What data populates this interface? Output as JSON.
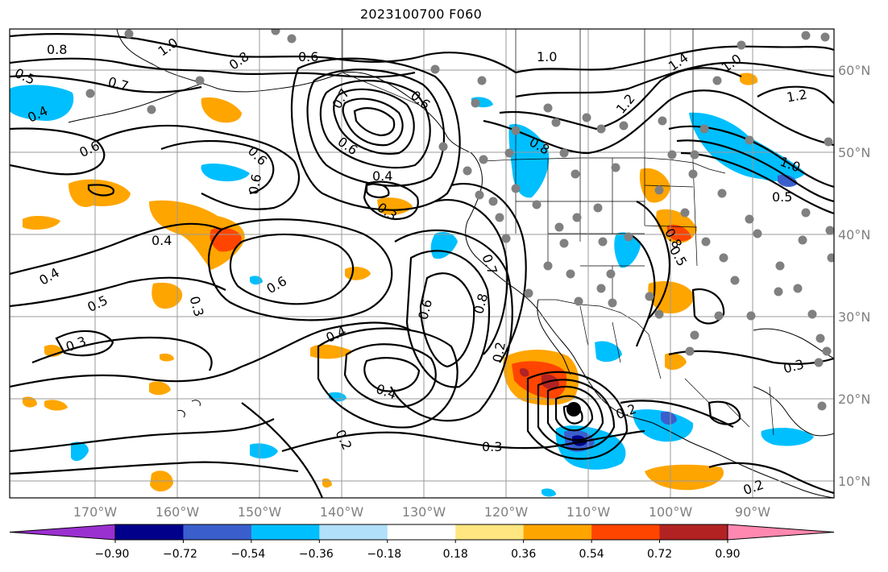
{
  "title": "2023100700 F060",
  "lat_labels": [
    {
      "lat": 60,
      "text": "60°N"
    },
    {
      "lat": 50,
      "text": "50°N"
    },
    {
      "lat": 40,
      "text": "40°N"
    },
    {
      "lat": 30,
      "text": "30°N"
    },
    {
      "lat": 20,
      "text": "20°N"
    },
    {
      "lat": 10,
      "text": "10°N"
    }
  ],
  "lon_labels": [
    {
      "lon": -170,
      "text": "170°W"
    },
    {
      "lon": -160,
      "text": "160°W"
    },
    {
      "lon": -150,
      "text": "150°W"
    },
    {
      "lon": -140,
      "text": "140°W"
    },
    {
      "lon": -130,
      "text": "130°W"
    },
    {
      "lon": -120,
      "text": "120°W"
    },
    {
      "lon": -110,
      "text": "110°W"
    },
    {
      "lon": -100,
      "text": "100°W"
    },
    {
      "lon": -90,
      "text": "90°W"
    }
  ],
  "colorbar": {
    "colors": [
      "#9b30d0",
      "#00008b",
      "#3a5fcd",
      "#00bfff",
      "#b0e0fa",
      "#ffffff",
      "#ffe680",
      "#ffa500",
      "#ff4500",
      "#b22222",
      "#ff88b0"
    ],
    "ticks": [
      "−0.90",
      "−0.72",
      "−0.54",
      "−0.36",
      "−0.18",
      "0.18",
      "0.36",
      "0.54",
      "0.72",
      "0.90"
    ]
  },
  "contour_labels": [
    "0.8",
    "1.0",
    "0.8",
    "0.6",
    "0.5",
    "0.7",
    "0.4",
    "0.6",
    "0.7",
    "0.6",
    "0.6",
    "0.6",
    "0.4",
    "0.3",
    "0.4",
    "0.6",
    "0.4",
    "0.5",
    "0.3",
    "0.3",
    "0.6",
    "0.8",
    "0.7",
    "0.8",
    "0.6",
    "0.4",
    "0.4",
    "0.2",
    "0.3",
    "0.2",
    "0.2",
    "1.0",
    "1.4",
    "1.0",
    "1.2",
    "1.2",
    "1.0",
    "0.5",
    "0.8",
    "0.5",
    "0.3",
    "0.2"
  ]
}
